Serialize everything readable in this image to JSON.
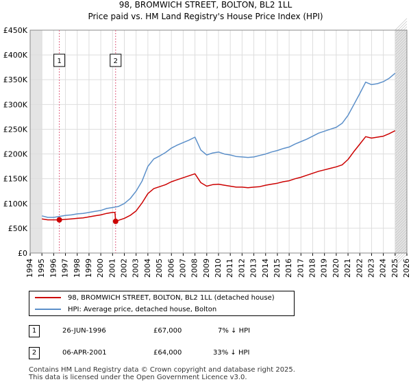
{
  "title_line1": "98, BROMWICH STREET, BOLTON, BL2 1LL",
  "title_line2": "Price paid vs. HM Land Registry's House Price Index (HPI)",
  "legend": [
    {
      "label": "98, BROMWICH STREET, BOLTON, BL2 1LL (detached house)",
      "color": "#cc0000"
    },
    {
      "label": "HPI: Average price, detached house, Bolton",
      "color": "#5b8fc9"
    }
  ],
  "transactions": [
    {
      "num": "1",
      "date": "26-JUN-1996",
      "price": "£67,000",
      "hpi": "7% ↓ HPI"
    },
    {
      "num": "2",
      "date": "06-APR-2001",
      "price": "£64,000",
      "hpi": "33% ↓ HPI"
    }
  ],
  "footer_line1": "Contains HM Land Registry data © Crown copyright and database right 2025.",
  "footer_line2": "This data is licensed under the Open Government Licence v3.0.",
  "chart_data": {
    "type": "line",
    "xlim": [
      1994,
      2026
    ],
    "ylim": [
      0,
      450000
    ],
    "x_ticks": [
      1994,
      1995,
      1996,
      1997,
      1998,
      1999,
      2000,
      2001,
      2002,
      2003,
      2004,
      2005,
      2006,
      2007,
      2008,
      2009,
      2010,
      2011,
      2012,
      2013,
      2014,
      2015,
      2016,
      2017,
      2018,
      2019,
      2020,
      2021,
      2022,
      2023,
      2024,
      2025,
      2026
    ],
    "y_ticks": [
      {
        "value": 0,
        "label": "£0"
      },
      {
        "value": 50000,
        "label": "£50K"
      },
      {
        "value": 100000,
        "label": "£100K"
      },
      {
        "value": 150000,
        "label": "£150K"
      },
      {
        "value": 200000,
        "label": "£200K"
      },
      {
        "value": 250000,
        "label": "£250K"
      },
      {
        "value": 300000,
        "label": "£300K"
      },
      {
        "value": 350000,
        "label": "£350K"
      },
      {
        "value": 400000,
        "label": "£400K"
      },
      {
        "value": 450000,
        "label": "£450K"
      }
    ],
    "series": [
      {
        "name": "HPI: Average price, detached house, Bolton",
        "color": "#5b8fc9",
        "x": [
          1995.0,
          1995.5,
          1996.0,
          1996.5,
          1997.0,
          1997.5,
          1998.0,
          1998.5,
          1999.0,
          1999.5,
          2000.0,
          2000.5,
          2001.0,
          2001.5,
          2002.0,
          2002.5,
          2003.0,
          2003.5,
          2004.0,
          2004.5,
          2005.0,
          2005.5,
          2006.0,
          2006.5,
          2007.0,
          2007.5,
          2008.0,
          2008.5,
          2009.0,
          2009.5,
          2010.0,
          2010.5,
          2011.0,
          2011.5,
          2012.0,
          2012.5,
          2013.0,
          2013.5,
          2014.0,
          2014.5,
          2015.0,
          2015.5,
          2016.0,
          2016.5,
          2017.0,
          2017.5,
          2018.0,
          2018.5,
          2019.0,
          2019.5,
          2020.0,
          2020.5,
          2021.0,
          2021.5,
          2022.0,
          2022.5,
          2023.0,
          2023.5,
          2024.0,
          2024.5,
          2025.0
        ],
        "values": [
          75000,
          72000,
          72000,
          74000,
          76000,
          77000,
          79000,
          80000,
          82000,
          84000,
          86000,
          90000,
          92000,
          94000,
          100000,
          110000,
          125000,
          145000,
          175000,
          190000,
          196000,
          203000,
          212000,
          218000,
          223000,
          228000,
          234000,
          208000,
          198000,
          202000,
          204000,
          200000,
          198000,
          195000,
          194000,
          193000,
          194000,
          197000,
          200000,
          204000,
          207000,
          211000,
          214000,
          220000,
          225000,
          230000,
          236000,
          242000,
          246000,
          250000,
          254000,
          262000,
          278000,
          300000,
          322000,
          345000,
          340000,
          342000,
          346000,
          353000,
          363000
        ]
      },
      {
        "name": "98, BROMWICH STREET, BOLTON, BL2 1LL (detached house)",
        "color": "#cc0000",
        "x": [
          1995.0,
          1995.5,
          1996.0,
          1996.48,
          1997.0,
          1997.5,
          1998.0,
          1998.5,
          1999.0,
          1999.5,
          2000.0,
          2000.5,
          2001.0,
          2001.2,
          2001.26,
          2001.5,
          2002.0,
          2002.5,
          2003.0,
          2003.5,
          2004.0,
          2004.5,
          2005.0,
          2005.5,
          2006.0,
          2006.5,
          2007.0,
          2007.5,
          2008.0,
          2008.5,
          2009.0,
          2009.5,
          2010.0,
          2010.5,
          2011.0,
          2011.5,
          2012.0,
          2012.5,
          2013.0,
          2013.5,
          2014.0,
          2014.5,
          2015.0,
          2015.5,
          2016.0,
          2016.5,
          2017.0,
          2017.5,
          2018.0,
          2018.5,
          2019.0,
          2019.5,
          2020.0,
          2020.5,
          2021.0,
          2021.5,
          2022.0,
          2022.5,
          2023.0,
          2023.5,
          2024.0,
          2024.5,
          2025.0
        ],
        "values": [
          69000,
          67000,
          67000,
          67000,
          68000,
          69000,
          70000,
          71000,
          73000,
          75000,
          77000,
          80000,
          82000,
          82000,
          64000,
          66000,
          70000,
          76000,
          85000,
          101000,
          120000,
          130000,
          134000,
          138000,
          144000,
          148000,
          152000,
          156000,
          160000,
          142000,
          135000,
          138000,
          139000,
          137000,
          135000,
          133000,
          133000,
          132000,
          133000,
          134000,
          137000,
          139000,
          141000,
          144000,
          146000,
          150000,
          153000,
          157000,
          161000,
          165000,
          168000,
          171000,
          174000,
          178000,
          189000,
          205000,
          220000,
          235000,
          232000,
          234000,
          236000,
          241000,
          247000
        ]
      }
    ],
    "markers": [
      {
        "label": "1",
        "x": 1996.48,
        "value": 67000
      },
      {
        "label": "2",
        "x": 2001.26,
        "value": 64000
      }
    ]
  }
}
